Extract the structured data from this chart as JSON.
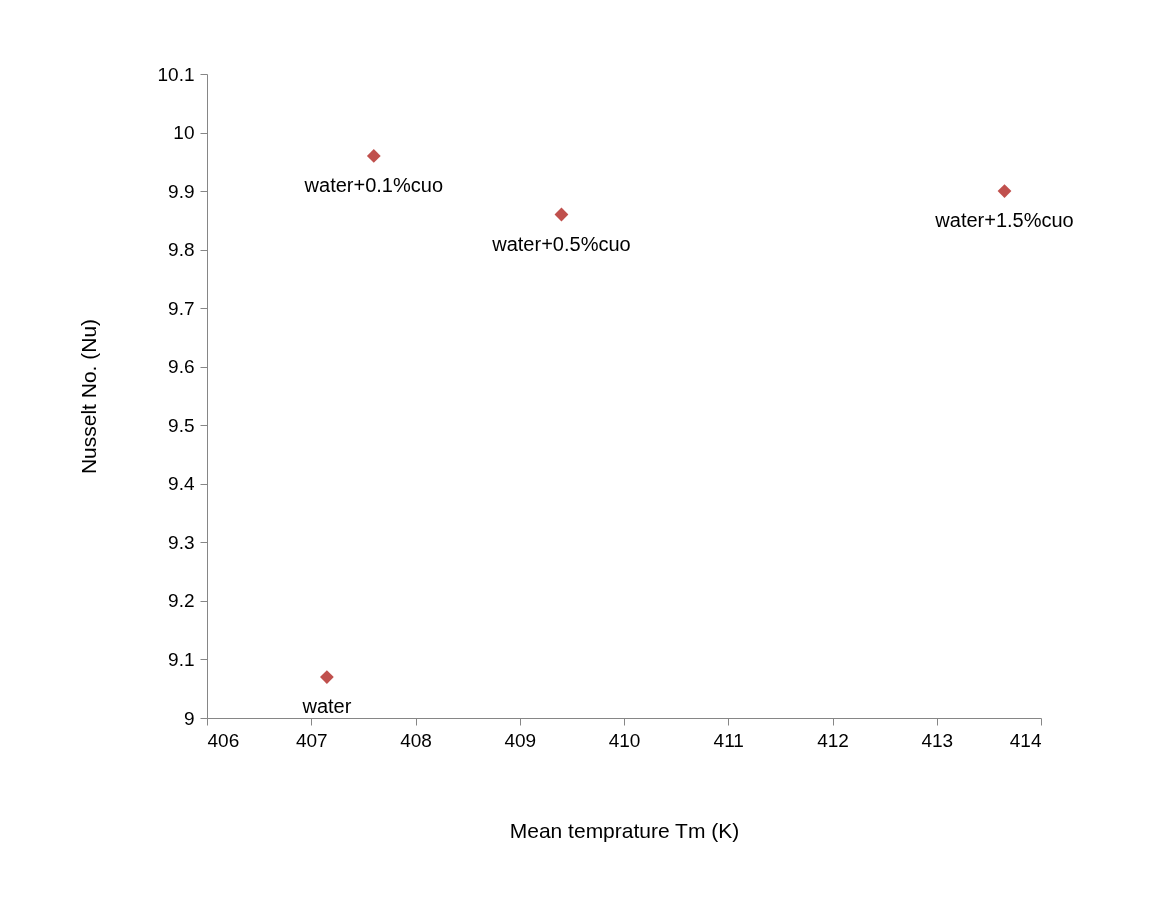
{
  "chart_data": {
    "type": "scatter",
    "xlabel": "Mean temprature Tm (K)",
    "ylabel": "Nusselt No. (Nu)",
    "x": [
      407.15,
      407.6,
      409.4,
      413.65
    ],
    "series": [
      {
        "color": "#c0504d",
        "values": [
          9.07,
          9.96,
          9.86,
          9.9
        ]
      }
    ],
    "marker": "diamond",
    "grid": false,
    "xlim": [
      406,
      414
    ],
    "xticks": [
      406,
      407,
      408,
      409,
      410,
      411,
      412,
      413,
      414
    ],
    "ylim": [
      9,
      10.1
    ],
    "yticks": [
      9,
      9.1,
      9.2,
      9.3,
      9.4,
      9.5,
      9.6,
      9.7,
      9.8,
      9.9,
      10,
      10.1
    ],
    "annotations": [
      {
        "text": "water",
        "x": 407.15,
        "y": 9.07
      },
      {
        "text": "water+0.1%cuo",
        "x": 407.6,
        "y": 9.96
      },
      {
        "text": "water+0.5%cuo",
        "x": 409.4,
        "y": 9.86
      },
      {
        "text": "water+1.5%cuo",
        "x": 413.65,
        "y": 9.9
      }
    ]
  }
}
